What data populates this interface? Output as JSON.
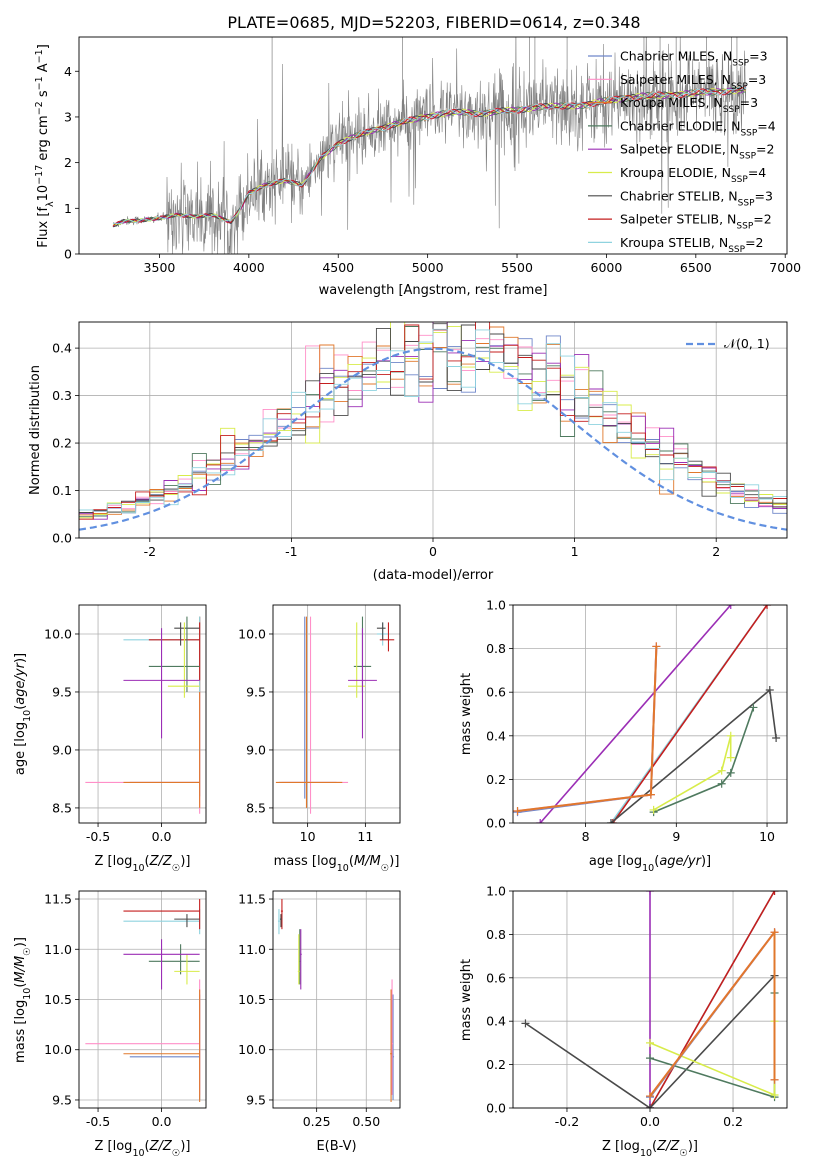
{
  "title": "PLATE=0685, MJD=52203, FIBERID=0614, z=0.348",
  "colors": {
    "Chabrier MILES": "#6f86c9",
    "Salpeter MILES": "#ff8fc8",
    "Kroupa MILES": "#e0782c",
    "Chabrier ELODIE": "#4f7a5f",
    "Salpeter ELODIE": "#9b2eb5",
    "Kroupa ELODIE": "#d8ec4a",
    "Chabrier STELIB": "#4a4a4a",
    "Salpeter STELIB": "#c41e1e",
    "Kroupa STELIB": "#8fd3df",
    "data": "#808080",
    "normal": "#6190e0",
    "grid": "#b0b0b0"
  },
  "legend": [
    {
      "name": "Chabrier MILES",
      "nssp": "3"
    },
    {
      "name": "Salpeter MILES",
      "nssp": "3"
    },
    {
      "name": "Kroupa MILES",
      "nssp": "3"
    },
    {
      "name": "Chabrier ELODIE",
      "nssp": "4"
    },
    {
      "name": "Salpeter ELODIE",
      "nssp": "2"
    },
    {
      "name": "Kroupa ELODIE",
      "nssp": "4"
    },
    {
      "name": "Chabrier STELIB",
      "nssp": "3"
    },
    {
      "name": "Salpeter STELIB",
      "nssp": "2"
    },
    {
      "name": "Kroupa STELIB",
      "nssp": "2"
    }
  ],
  "legend_label_fmt": "{name}, N_SSP={nssp}",
  "legend2": "𝒩(0, 1)",
  "chart_data": [
    {
      "id": "spectrum",
      "type": "line",
      "xlabel": "wavelength [Angstrom, rest frame]",
      "ylabel": "Flux [f_λ 10^-17 erg cm^-2 s^-1 A^-1]",
      "xlim": [
        3050,
        7010
      ],
      "ylim": [
        0,
        4.75
      ],
      "xticks": [
        3500,
        4000,
        4500,
        5000,
        5500,
        6000,
        6500,
        7000
      ],
      "yticks": [
        0,
        1,
        2,
        3,
        4
      ],
      "model_knots": {
        "x": [
          3240,
          3300,
          3400,
          3500,
          3600,
          3700,
          3800,
          3900,
          3950,
          4000,
          4100,
          4200,
          4300,
          4400,
          4500,
          4600,
          4700,
          4800,
          4900,
          5000,
          5100,
          5200,
          5300,
          5400,
          5500,
          5600,
          5700,
          5800,
          5900,
          6000,
          6100,
          6200,
          6300,
          6400,
          6500,
          6600,
          6700,
          6780
        ],
        "y": [
          0.62,
          0.72,
          0.74,
          0.78,
          0.86,
          0.82,
          0.85,
          0.7,
          0.98,
          1.33,
          1.52,
          1.62,
          1.5,
          2.1,
          2.42,
          2.58,
          2.72,
          2.82,
          2.92,
          3.02,
          3.08,
          3.1,
          3.08,
          3.12,
          3.15,
          3.22,
          3.22,
          3.25,
          3.27,
          3.35,
          3.42,
          3.45,
          3.47,
          3.5,
          3.52,
          3.55,
          3.58,
          3.6
        ]
      },
      "data_range": [
        3540,
        6780
      ],
      "grid": false
    },
    {
      "id": "residuals",
      "type": "step",
      "xlabel": "(data-model)/error",
      "ylabel": "Normed distribution",
      "xlim": [
        -2.5,
        2.5
      ],
      "ylim": [
        0,
        0.455
      ],
      "xticks": [
        -2,
        -1,
        0,
        1,
        2
      ],
      "yticks": [
        0.0,
        0.1,
        0.2,
        0.3,
        0.4
      ],
      "bin_width": 0.1,
      "grid": true
    },
    {
      "id": "age_vs_Z",
      "type": "errorbar",
      "xlabel": "Z [log10(Z/Z☉)]",
      "ylabel": "age [log10(age/yr)]",
      "xlim": [
        -0.65,
        0.35
      ],
      "ylim": [
        8.37,
        10.25
      ],
      "xticks": [
        -0.5,
        0.0
      ],
      "yticks": [
        8.5,
        9.0,
        9.5,
        10.0
      ],
      "grid": true
    },
    {
      "id": "age_vs_mass",
      "type": "errorbar",
      "xlabel": "mass [log10(M/M☉)]",
      "xlim": [
        9.4,
        11.6
      ],
      "ylim": [
        8.37,
        10.25
      ],
      "xticks": [
        10,
        11
      ],
      "yticks": [
        8.5,
        9.0,
        9.5,
        10.0
      ],
      "grid": true
    },
    {
      "id": "weight_vs_age",
      "type": "line",
      "xlabel": "age [log10(age/yr)]",
      "ylabel": "mass weight",
      "xlim": [
        7.2,
        10.22
      ],
      "ylim": [
        0,
        1.0
      ],
      "xticks": [
        8,
        9,
        10
      ],
      "yticks": [
        0.0,
        0.2,
        0.4,
        0.6,
        0.8,
        1.0
      ],
      "grid": true
    },
    {
      "id": "mass_vs_Z",
      "type": "errorbar",
      "xlabel": "Z [log10(Z/Z☉)]",
      "ylabel": "mass [log10(M/M☉)]",
      "xlim": [
        -0.65,
        0.35
      ],
      "ylim": [
        9.42,
        11.58
      ],
      "xticks": [
        -0.5,
        0.0
      ],
      "yticks": [
        9.5,
        10.0,
        10.5,
        11.0,
        11.5
      ],
      "grid": true
    },
    {
      "id": "mass_vs_ebv",
      "type": "errorbar",
      "xlabel": "E(B-V)",
      "xlim": [
        0.03,
        0.67
      ],
      "ylim": [
        9.42,
        11.58
      ],
      "xticks": [
        0.25,
        0.5
      ],
      "yticks": [
        9.5,
        10.0,
        10.5,
        11.0,
        11.5
      ],
      "grid": true
    },
    {
      "id": "weight_vs_Z",
      "type": "line",
      "xlabel": "Z [log10(Z/Z☉)]",
      "ylabel": "mass weight",
      "xlim": [
        -0.33,
        0.33
      ],
      "ylim": [
        0,
        1.0
      ],
      "xticks": [
        -0.2,
        0.0,
        0.2
      ],
      "yticks": [
        0.0,
        0.2,
        0.4,
        0.6,
        0.8,
        1.0
      ],
      "grid": true
    }
  ]
}
